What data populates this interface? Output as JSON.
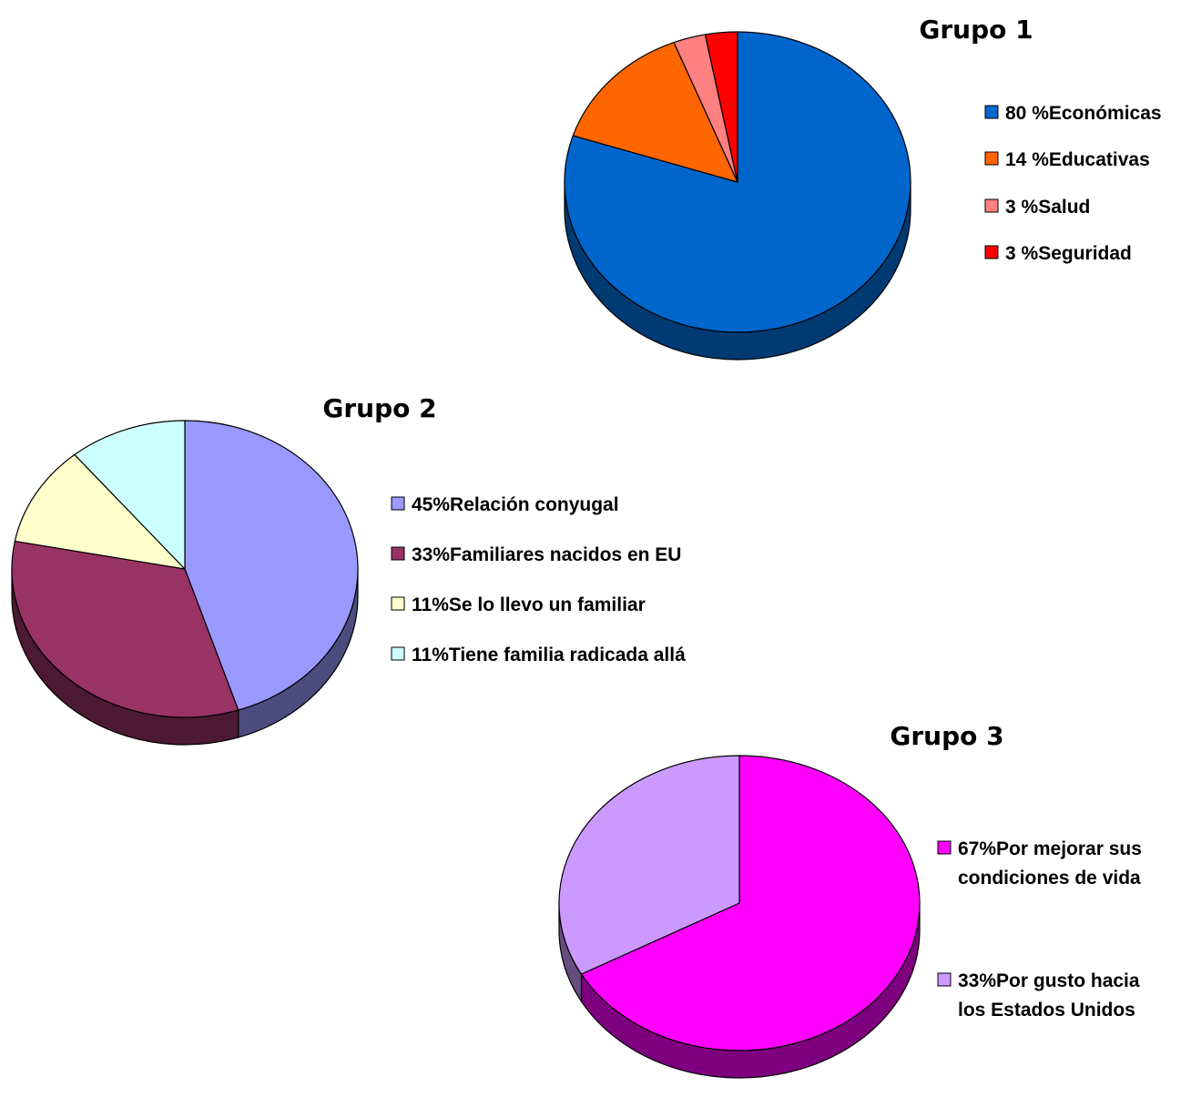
{
  "chart_data": [
    {
      "type": "pie",
      "title": "Grupo 1",
      "slices": [
        {
          "pct_label": "80 %",
          "label": "Económicas",
          "value": 80,
          "color": "#0066CC",
          "dark": "#003A73"
        },
        {
          "pct_label": "14 %",
          "label": "Educativas",
          "value": 14,
          "color": "#FF6600",
          "dark": "#7F3300"
        },
        {
          "pct_label": "3 %",
          "label": "Salud",
          "value": 3,
          "color": "#FF8080",
          "dark": "#7F4040"
        },
        {
          "pct_label": "3 %",
          "label": "Seguridad",
          "value": 3,
          "color": "#FF0000",
          "dark": "#7F0000"
        }
      ]
    },
    {
      "type": "pie",
      "title": "Grupo 2",
      "slices": [
        {
          "pct_label": "45%",
          "label": "Relación conyugal",
          "value": 45,
          "color": "#9999FF",
          "dark": "#4C4C7F"
        },
        {
          "pct_label": "33%",
          "label": "Familiares nacidos en EU",
          "value": 33,
          "color": "#993366",
          "dark": "#4C1933"
        },
        {
          "pct_label": "11%",
          "label": "Se lo llevo un familiar",
          "value": 11,
          "color": "#FFFFCC",
          "dark": "#7F7F66"
        },
        {
          "pct_label": "11%",
          "label": "Tiene familia radicada allá",
          "value": 11,
          "color": "#CCFFFF",
          "dark": "#667F7F"
        }
      ]
    },
    {
      "type": "pie",
      "title": "Grupo 3",
      "slices": [
        {
          "pct_label": "67%",
          "label": "Por mejorar sus condiciones de vida",
          "value": 67,
          "color": "#FF00FF",
          "dark": "#7F007F"
        },
        {
          "pct_label": "33%",
          "label": "Por gusto hacia los Estados Unidos",
          "value": 33,
          "color": "#CC99FF",
          "dark": "#664C7F"
        }
      ]
    }
  ]
}
